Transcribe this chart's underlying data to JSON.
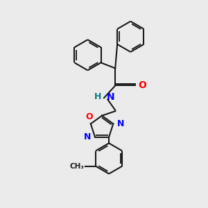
{
  "background_color": "#ebebeb",
  "line_color": "#1a1a1a",
  "bond_width": 1.5,
  "N_color": "#0000ff",
  "O_color": "#ff0000",
  "H_color": "#008080",
  "figsize": [
    3.0,
    3.0
  ],
  "dpi": 100,
  "xlim": [
    0,
    10
  ],
  "ylim": [
    0,
    10
  ]
}
